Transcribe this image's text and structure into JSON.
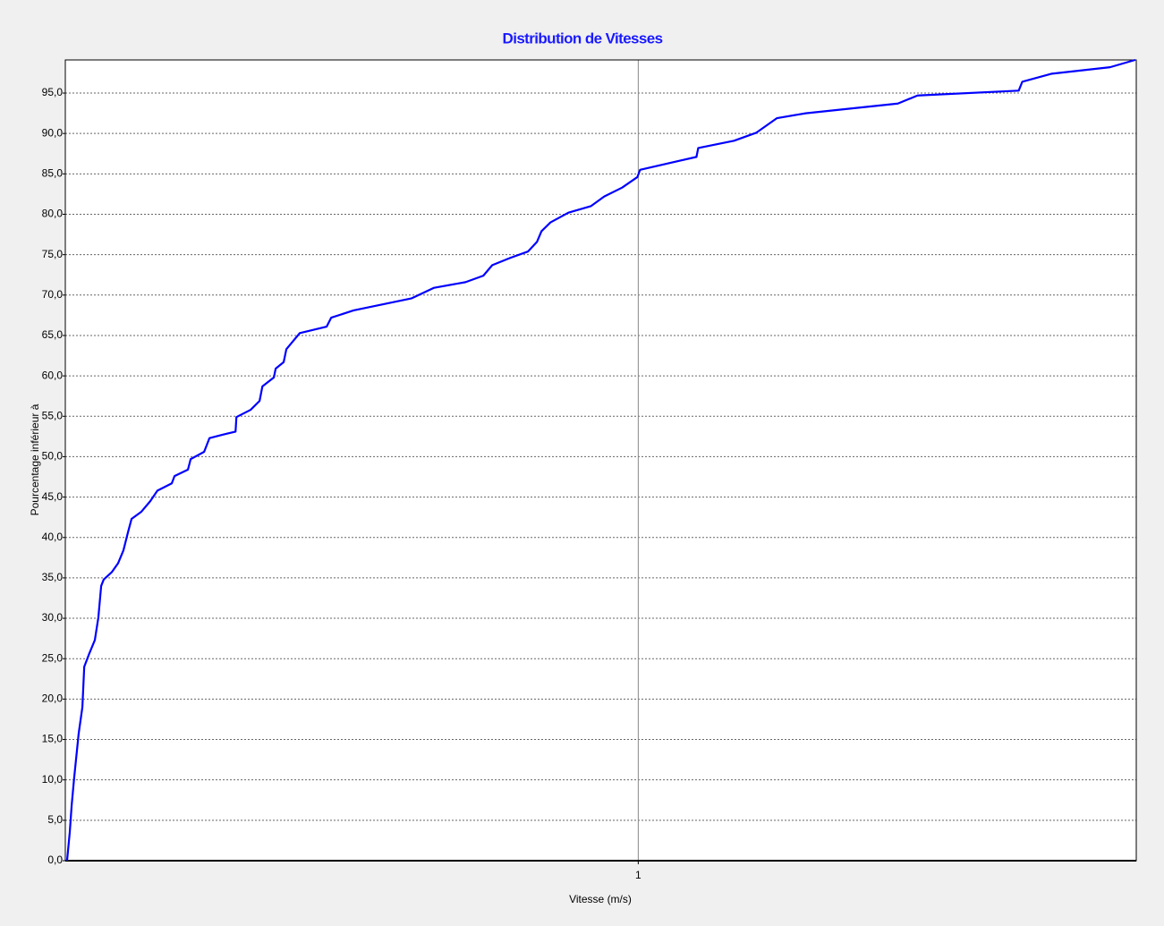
{
  "chart_data": {
    "type": "line",
    "title": "Distribution de Vitesses",
    "xlabel": "Vitesse (m/s)",
    "ylabel": "Pourcentage inférieur à",
    "log_x": true,
    "grid": true,
    "color": "#0000ff",
    "xlim": [
      0.1,
      7.4
    ],
    "ylim": [
      0,
      99.1
    ],
    "xticks": [
      1
    ],
    "yticks": [
      {
        "value": 0,
        "label": "0,0"
      },
      {
        "value": 5,
        "label": "5,0"
      },
      {
        "value": 10,
        "label": "10,0"
      },
      {
        "value": 15,
        "label": "15,0"
      },
      {
        "value": 20,
        "label": "20,0"
      },
      {
        "value": 25,
        "label": "25,0"
      },
      {
        "value": 30,
        "label": "30,0"
      },
      {
        "value": 35,
        "label": "35,0"
      },
      {
        "value": 40,
        "label": "40,0"
      },
      {
        "value": 45,
        "label": "45,0"
      },
      {
        "value": 50,
        "label": "50,0"
      },
      {
        "value": 55,
        "label": "55,0"
      },
      {
        "value": 60,
        "label": "60,0"
      },
      {
        "value": 65,
        "label": "65,0"
      },
      {
        "value": 70,
        "label": "70,0"
      },
      {
        "value": 75,
        "label": "75,0"
      },
      {
        "value": 80,
        "label": "80,0"
      },
      {
        "value": 85,
        "label": "85,0"
      },
      {
        "value": 90,
        "label": "90,0"
      },
      {
        "value": 95,
        "label": "95,0"
      }
    ],
    "x": [
      0.1007,
      0.1018,
      0.1026,
      0.1036,
      0.1055,
      0.1071,
      0.1079,
      0.1102,
      0.1126,
      0.1142,
      0.1155,
      0.1167,
      0.1205,
      0.1236,
      0.1263,
      0.1286,
      0.1305,
      0.1358,
      0.1407,
      0.1448,
      0.1534,
      0.1551,
      0.1637,
      0.1655,
      0.1747,
      0.1785,
      0.1877,
      0.1982,
      0.1989,
      0.2106,
      0.2183,
      0.2208,
      0.2312,
      0.2329,
      0.2405,
      0.2431,
      0.2566,
      0.2859,
      0.2911,
      0.3185,
      0.4024,
      0.4402,
      0.4994,
      0.5366,
      0.5561,
      0.5978,
      0.6423,
      0.6658,
      0.6778,
      0.7028,
      0.7553,
      0.8264,
      0.8722,
      0.9373,
      0.9964,
      1.0072,
      1.2635,
      1.2726,
      1.4695,
      1.6077,
      1.7466,
      1.9598,
      2.8387,
      3.0726,
      4.6138,
      4.6805,
      5.2723,
      6.6606,
      7.3662
    ],
    "values": [
      0,
      3.5,
      6.9,
      10.2,
      15.7,
      19.0,
      24.0,
      25.7,
      27.3,
      30.1,
      34.0,
      34.8,
      35.7,
      36.8,
      38.4,
      40.6,
      42.3,
      43.2,
      44.5,
      45.8,
      46.7,
      47.6,
      48.4,
      49.7,
      50.6,
      52.3,
      52.7,
      53.1,
      54.9,
      55.8,
      56.9,
      58.7,
      59.8,
      60.9,
      61.7,
      63.3,
      65.3,
      66.1,
      67.2,
      68.1,
      69.6,
      70.9,
      71.6,
      72.4,
      73.7,
      74.6,
      75.4,
      76.6,
      77.9,
      79.0,
      80.2,
      81.0,
      82.2,
      83.3,
      84.6,
      85.5,
      87.1,
      88.2,
      89.1,
      90.1,
      91.9,
      92.5,
      93.7,
      94.7,
      95.3,
      96.4,
      97.4,
      98.2,
      99.1
    ]
  }
}
